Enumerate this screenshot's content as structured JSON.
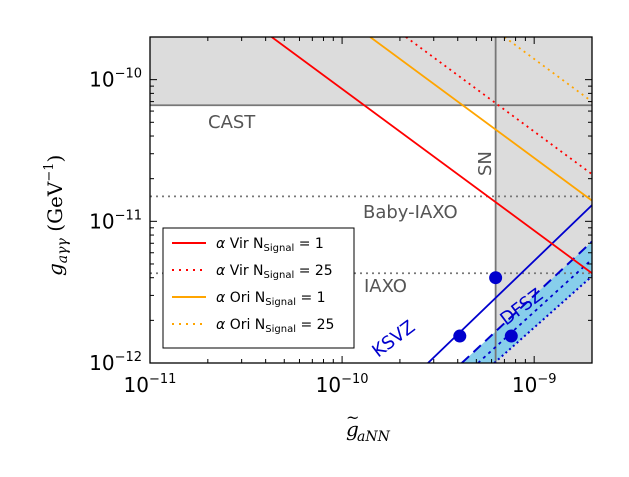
{
  "chart_data": {
    "type": "line",
    "x_scale": "log",
    "y_scale": "log",
    "xlim": [
      1e-11,
      2e-09
    ],
    "ylim": [
      1e-12,
      2e-10
    ],
    "xlabel": {
      "base": "g",
      "tilde": "~",
      "subscript": "aNN"
    },
    "ylabel": {
      "base": "g",
      "subscript": "aγγ",
      "unit_open": " (GeV",
      "unit_exp": "−1",
      "unit_close": ")"
    },
    "x_ticks": [
      {
        "value": 1e-11,
        "base": "10",
        "exp": "−11"
      },
      {
        "value": 1e-10,
        "base": "10",
        "exp": "−10"
      },
      {
        "value": 1e-09,
        "base": "10",
        "exp": "−9"
      }
    ],
    "y_ticks": [
      {
        "value": 1e-12,
        "base": "10",
        "exp": "−12"
      },
      {
        "value": 1e-11,
        "base": "10",
        "exp": "−11"
      },
      {
        "value": 1e-10,
        "base": "10",
        "exp": "−10"
      }
    ],
    "colors": {
      "excluded_fill": "#dcdcdc",
      "limit_line": "#777777",
      "vir": "#ff0000",
      "ori": "#ffa500",
      "model": "#0000cd",
      "dfsz_band": "#87ceeb",
      "text_gray": "#555555"
    },
    "bounds": {
      "cast": {
        "y": 6.6e-11,
        "label": "CAST"
      },
      "sn": {
        "x": 6.3e-10,
        "label": "SN"
      },
      "baby_iaxo": {
        "y": 1.5e-11,
        "label": "Baby-IAXO"
      },
      "iaxo": {
        "y": 4.3e-12,
        "label": "IAXO"
      }
    },
    "series": [
      {
        "name": "α Vir N_Signal = 1",
        "style": "solid",
        "color_key": "vir",
        "points": [
          [
            4.3e-11,
            2e-10
          ],
          [
            2e-09,
            4.3e-12
          ]
        ]
      },
      {
        "name": "α Vir N_Signal = 25",
        "style": "dotted",
        "color_key": "vir",
        "points": [
          [
            2.15e-10,
            2e-10
          ],
          [
            2e-09,
            2.15e-11
          ]
        ]
      },
      {
        "name": "α Ori N_Signal = 1",
        "style": "solid",
        "color_key": "ori",
        "points": [
          [
            1.4e-10,
            2e-10
          ],
          [
            2e-09,
            1.4e-11
          ]
        ]
      },
      {
        "name": "α Ori N_Signal = 25",
        "style": "dotted",
        "color_key": "ori",
        "points": [
          [
            7e-10,
            2e-10
          ],
          [
            2e-09,
            7e-11
          ]
        ]
      }
    ],
    "models": {
      "ksvz": {
        "label": "KSVZ",
        "points": [
          [
            2.8e-10,
            1e-12
          ],
          [
            2e-09,
            1.3e-11
          ]
        ]
      },
      "dfsz": {
        "label": "DFSZ",
        "upper": [
          [
            4.2e-10,
            1e-12
          ],
          [
            2e-09,
            7.2e-12
          ]
        ],
        "lower": [
          [
            6.2e-10,
            1e-12
          ],
          [
            2e-09,
            4.1e-12
          ]
        ],
        "mid": [
          [
            5.1e-10,
            1e-12
          ],
          [
            2e-09,
            5.4e-12
          ]
        ]
      }
    },
    "benchmark_points": [
      {
        "x": 6.3e-10,
        "y": 4e-12
      },
      {
        "x": 4.1e-10,
        "y": 1.55e-12
      },
      {
        "x": 7.6e-10,
        "y": 1.55e-12
      }
    ],
    "legend": {
      "position": "lower-left",
      "entries": [
        {
          "star": "α",
          "name": "Vir",
          "n": "N",
          "sub": "Signal",
          "eq": " = 1",
          "style": "solid",
          "color_key": "vir"
        },
        {
          "star": "α",
          "name": "Vir",
          "n": "N",
          "sub": "Signal",
          "eq": " = 25",
          "style": "dotted",
          "color_key": "vir"
        },
        {
          "star": "α",
          "name": "Ori",
          "n": "N",
          "sub": "Signal",
          "eq": " = 1",
          "style": "solid",
          "color_key": "ori"
        },
        {
          "star": "α",
          "name": "Ori",
          "n": "N",
          "sub": "Signal",
          "eq": " = 25",
          "style": "dotted",
          "color_key": "ori"
        }
      ]
    }
  }
}
